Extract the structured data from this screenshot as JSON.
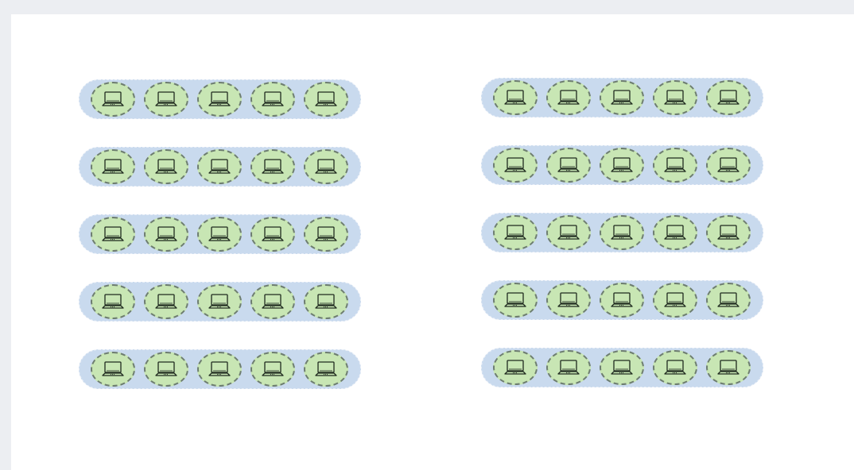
{
  "canvas": {
    "background_color": "#ffffff",
    "page_color": "#eceef2"
  },
  "groups": [
    {
      "name": "left",
      "rows": [
        {
          "nodes": [
            "laptop-icon",
            "laptop-icon",
            "laptop-icon",
            "laptop-icon",
            "laptop-icon"
          ]
        },
        {
          "nodes": [
            "laptop-icon",
            "laptop-icon",
            "laptop-icon",
            "laptop-icon",
            "laptop-icon"
          ]
        },
        {
          "nodes": [
            "laptop-icon",
            "laptop-icon",
            "laptop-icon",
            "laptop-icon",
            "laptop-icon"
          ]
        },
        {
          "nodes": [
            "laptop-icon",
            "laptop-icon",
            "laptop-icon",
            "laptop-icon",
            "laptop-icon"
          ]
        },
        {
          "nodes": [
            "laptop-icon",
            "laptop-icon",
            "laptop-icon",
            "laptop-icon",
            "laptop-icon"
          ]
        }
      ]
    },
    {
      "name": "right",
      "rows": [
        {
          "nodes": [
            "laptop-icon",
            "laptop-icon",
            "laptop-icon",
            "laptop-icon",
            "laptop-icon"
          ]
        },
        {
          "nodes": [
            "laptop-icon",
            "laptop-icon",
            "laptop-icon",
            "laptop-icon",
            "laptop-icon"
          ]
        },
        {
          "nodes": [
            "laptop-icon",
            "laptop-icon",
            "laptop-icon",
            "laptop-icon",
            "laptop-icon"
          ]
        },
        {
          "nodes": [
            "laptop-icon",
            "laptop-icon",
            "laptop-icon",
            "laptop-icon",
            "laptop-icon"
          ]
        },
        {
          "nodes": [
            "laptop-icon",
            "laptop-icon",
            "laptop-icon",
            "laptop-icon",
            "laptop-icon"
          ]
        }
      ]
    }
  ],
  "colors": {
    "row_fill": "#c9daee",
    "node_fill": "#c8e6b4",
    "node_border": "#6e7e70",
    "icon_stroke": "#1f2a1f"
  }
}
